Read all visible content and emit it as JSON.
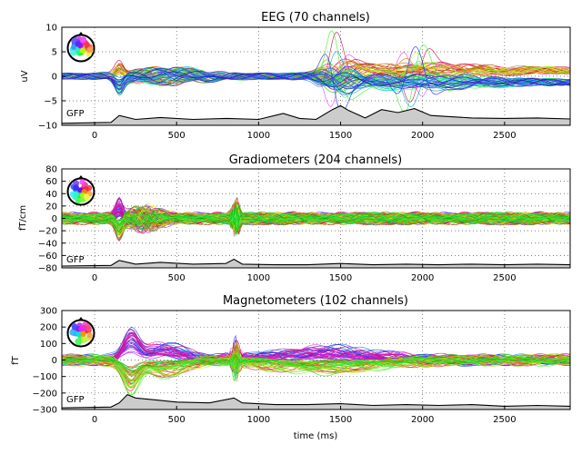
{
  "chart_data": [
    {
      "type": "line",
      "title": "EEG (70 channels)",
      "ylabel": "uV",
      "xlim": [
        -200,
        2900
      ],
      "ylim": [
        -10,
        10
      ],
      "xticks": [
        0,
        500,
        1000,
        1500,
        2000,
        2500
      ],
      "yticks": [
        -10,
        -5,
        0,
        5,
        10
      ],
      "grid": true,
      "channel_count": 70,
      "gfp_label": "GFP",
      "gfp_points": [
        [
          -200,
          0.4
        ],
        [
          100,
          0.6
        ],
        [
          150,
          2.0
        ],
        [
          250,
          1.2
        ],
        [
          400,
          1.6
        ],
        [
          600,
          1.2
        ],
        [
          800,
          1.4
        ],
        [
          1000,
          1.2
        ],
        [
          1150,
          2.4
        ],
        [
          1250,
          1.4
        ],
        [
          1350,
          1.2
        ],
        [
          1450,
          3.2
        ],
        [
          1500,
          4.0
        ],
        [
          1550,
          3.0
        ],
        [
          1650,
          1.5
        ],
        [
          1750,
          3.2
        ],
        [
          1850,
          2.6
        ],
        [
          1950,
          3.4
        ],
        [
          2050,
          2.0
        ],
        [
          2150,
          1.8
        ],
        [
          2300,
          1.5
        ],
        [
          2500,
          1.4
        ],
        [
          2700,
          1.5
        ],
        [
          2900,
          1.3
        ]
      ]
    },
    {
      "type": "line",
      "title": "Gradiometers (204 channels)",
      "ylabel": "fT/cm",
      "xlim": [
        -200,
        2900
      ],
      "ylim": [
        -80,
        80
      ],
      "xticks": [
        0,
        500,
        1000,
        1500,
        2000,
        2500
      ],
      "yticks": [
        -80,
        -60,
        -40,
        -20,
        0,
        20,
        40,
        60,
        80
      ],
      "grid": true,
      "channel_count": 204,
      "gfp_label": "GFP",
      "gfp_points": [
        [
          -200,
          3
        ],
        [
          100,
          4
        ],
        [
          150,
          12
        ],
        [
          250,
          6
        ],
        [
          400,
          9
        ],
        [
          600,
          6
        ],
        [
          800,
          7
        ],
        [
          850,
          14
        ],
        [
          900,
          6
        ],
        [
          1100,
          5
        ],
        [
          1300,
          5
        ],
        [
          1500,
          7
        ],
        [
          1700,
          5
        ],
        [
          1900,
          6
        ],
        [
          2100,
          5
        ],
        [
          2300,
          6
        ],
        [
          2500,
          5
        ],
        [
          2700,
          6
        ],
        [
          2900,
          5
        ]
      ]
    },
    {
      "type": "line",
      "title": "Magnetometers (102 channels)",
      "ylabel": "fT",
      "xlabel": "time (ms)",
      "xlim": [
        -200,
        2900
      ],
      "ylim": [
        -300,
        300
      ],
      "xticks": [
        0,
        500,
        1000,
        1500,
        2000,
        2500
      ],
      "yticks": [
        -300,
        -200,
        -100,
        0,
        100,
        200,
        300
      ],
      "grid": true,
      "channel_count": 102,
      "gfp_label": "GFP",
      "gfp_points": [
        [
          -200,
          10
        ],
        [
          100,
          15
        ],
        [
          150,
          40
        ],
        [
          200,
          90
        ],
        [
          250,
          70
        ],
        [
          350,
          60
        ],
        [
          500,
          45
        ],
        [
          700,
          40
        ],
        [
          850,
          70
        ],
        [
          900,
          40
        ],
        [
          1100,
          30
        ],
        [
          1300,
          30
        ],
        [
          1500,
          35
        ],
        [
          1700,
          25
        ],
        [
          1900,
          30
        ],
        [
          2100,
          25
        ],
        [
          2300,
          30
        ],
        [
          2500,
          20
        ],
        [
          2700,
          25
        ],
        [
          2900,
          20
        ]
      ]
    }
  ]
}
